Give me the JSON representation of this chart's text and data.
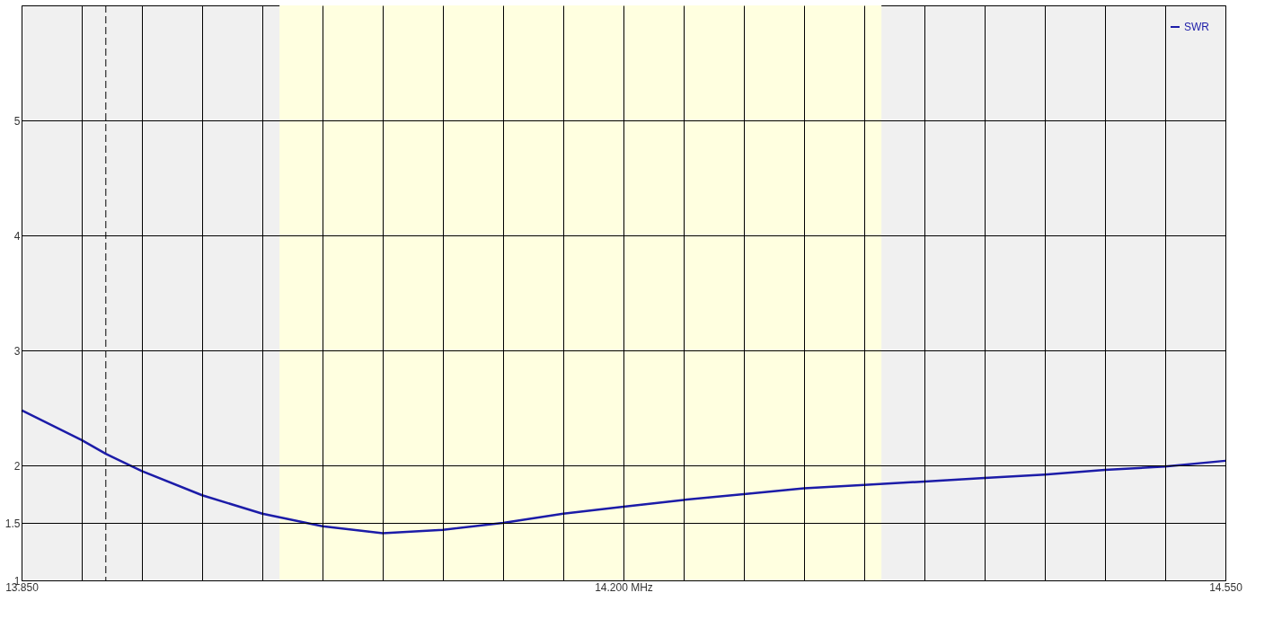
{
  "chart_data": {
    "type": "line",
    "x": [
      13.85,
      13.885,
      13.899,
      13.92,
      13.955,
      13.99,
      14.025,
      14.06,
      14.095,
      14.13,
      14.165,
      14.2,
      14.235,
      14.27,
      14.305,
      14.34,
      14.375,
      14.41,
      14.445,
      14.48,
      14.515,
      14.55
    ],
    "series": [
      {
        "name": "SWR",
        "color": "#1c1ca8",
        "values": [
          2.48,
          2.22,
          2.1,
          1.95,
          1.74,
          1.58,
          1.47,
          1.41,
          1.44,
          1.5,
          1.58,
          1.64,
          1.7,
          1.75,
          1.8,
          1.83,
          1.86,
          1.89,
          1.92,
          1.96,
          1.99,
          2.04
        ]
      }
    ],
    "xlim": [
      13.85,
      14.55
    ],
    "xticks": [
      {
        "value": 13.85,
        "label": "13.850"
      },
      {
        "value": 13.885,
        "label": null
      },
      {
        "value": 13.92,
        "label": null
      },
      {
        "value": 13.955,
        "label": null
      },
      {
        "value": 13.99,
        "label": null
      },
      {
        "value": 14.025,
        "label": null
      },
      {
        "value": 14.06,
        "label": null
      },
      {
        "value": 14.095,
        "label": null
      },
      {
        "value": 14.13,
        "label": null
      },
      {
        "value": 14.165,
        "label": null
      },
      {
        "value": 14.2,
        "label": "14.200 MHz"
      },
      {
        "value": 14.235,
        "label": null
      },
      {
        "value": 14.27,
        "label": null
      },
      {
        "value": 14.305,
        "label": null
      },
      {
        "value": 14.34,
        "label": null
      },
      {
        "value": 14.375,
        "label": null
      },
      {
        "value": 14.41,
        "label": null
      },
      {
        "value": 14.445,
        "label": null
      },
      {
        "value": 14.48,
        "label": null
      },
      {
        "value": 14.515,
        "label": null
      },
      {
        "value": 14.55,
        "label": "14.550"
      }
    ],
    "ylim": [
      1,
      6
    ],
    "yticks": [
      1,
      1.5,
      2,
      3,
      4,
      5
    ],
    "bands": [
      {
        "axis": "x",
        "from": 14.0,
        "to": 14.35,
        "color": "#ffffe0"
      }
    ],
    "ref_lines": [
      {
        "axis": "x",
        "value": 13.899,
        "color": "#000000",
        "line_style": "dashed"
      }
    ],
    "grid": true,
    "legend": "top right",
    "marker": "none",
    "line_style": "solid"
  }
}
